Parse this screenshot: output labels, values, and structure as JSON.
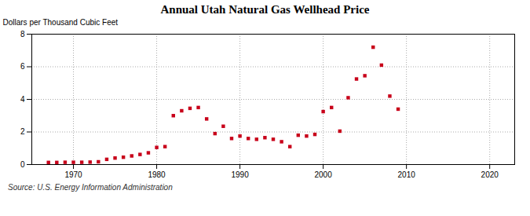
{
  "chart_data": {
    "type": "scatter",
    "title": "Annual Utah Natural Gas Wellhead Price",
    "ylabel": "Dollars per Thousand Cubic Feet",
    "source": "Source: U.S. Energy Information Administration",
    "x": [
      1967,
      1968,
      1969,
      1970,
      1971,
      1972,
      1973,
      1974,
      1975,
      1976,
      1977,
      1978,
      1979,
      1980,
      1981,
      1982,
      1983,
      1984,
      1985,
      1986,
      1987,
      1988,
      1989,
      1990,
      1991,
      1992,
      1993,
      1994,
      1995,
      1996,
      1997,
      1998,
      1999,
      2000,
      2001,
      2002,
      2003,
      2004,
      2005,
      2006,
      2007,
      2008,
      2009
    ],
    "values": [
      0.13,
      0.13,
      0.14,
      0.14,
      0.14,
      0.15,
      0.17,
      0.32,
      0.4,
      0.45,
      0.53,
      0.62,
      0.72,
      1.05,
      1.1,
      3.0,
      3.3,
      3.45,
      3.5,
      2.8,
      1.9,
      2.35,
      1.6,
      1.75,
      1.6,
      1.55,
      1.65,
      1.55,
      1.4,
      1.1,
      1.8,
      1.75,
      1.85,
      3.25,
      3.5,
      2.05,
      4.1,
      5.25,
      5.45,
      7.2,
      6.1,
      4.2,
      3.4
    ],
    "color": "#C8001A",
    "marker": "square",
    "xlim": [
      1965,
      2023
    ],
    "ylim": [
      0,
      8
    ],
    "xticks": [
      1970,
      1980,
      1990,
      2000,
      2010,
      2020
    ],
    "yticks": [
      0,
      2,
      4,
      6,
      8
    ],
    "grid": true
  }
}
